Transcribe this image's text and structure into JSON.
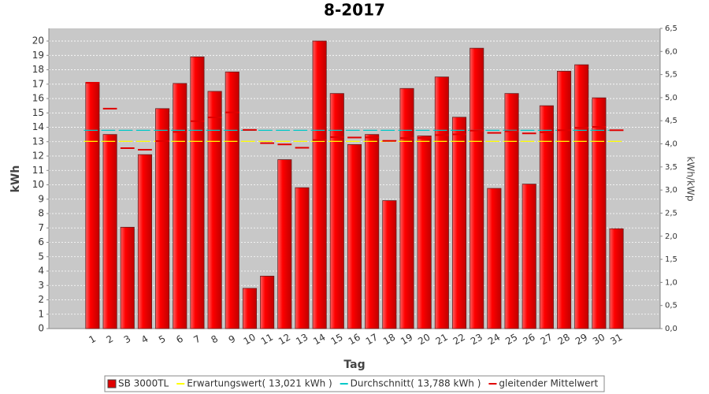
{
  "chart_data": {
    "type": "bar",
    "title": "8-2017",
    "x_label": "Tag",
    "y_label": "kWh",
    "y2_label": "kWh/kWp",
    "categories": [
      "1",
      "2",
      "3",
      "4",
      "5",
      "6",
      "7",
      "8",
      "9",
      "10",
      "11",
      "12",
      "13",
      "14",
      "15",
      "16",
      "17",
      "18",
      "19",
      "20",
      "21",
      "22",
      "23",
      "24",
      "25",
      "26",
      "27",
      "28",
      "29",
      "30",
      "31"
    ],
    "ylim": [
      0,
      20.88
    ],
    "yticks": [
      0,
      1,
      2,
      3,
      4,
      5,
      6,
      7,
      8,
      9,
      10,
      11,
      12,
      13,
      14,
      15,
      16,
      17,
      18,
      19,
      20
    ],
    "y2lim": [
      0,
      6.5
    ],
    "y2ticks": [
      {
        "value": 0,
        "label": "0,0"
      },
      {
        "value": 0.5,
        "label": "0,5"
      },
      {
        "value": 1,
        "label": "1,0"
      },
      {
        "value": 1.5,
        "label": "1,5"
      },
      {
        "value": 2,
        "label": "2,0"
      },
      {
        "value": 2.5,
        "label": "2,5"
      },
      {
        "value": 3,
        "label": "3,0"
      },
      {
        "value": 3.5,
        "label": "3,5"
      },
      {
        "value": 4,
        "label": "4,0"
      },
      {
        "value": 4.5,
        "label": "4,5"
      },
      {
        "value": 5,
        "label": "5,0"
      },
      {
        "value": 5.5,
        "label": "5,5"
      },
      {
        "value": 6,
        "label": "6,0"
      },
      {
        "value": 6.5,
        "label": "6,5"
      }
    ],
    "grid": true,
    "legend": "bottom",
    "series": [
      {
        "name": "SB 3000TL",
        "type": "bar",
        "color": "#e00000",
        "values": [
          17.1,
          13.5,
          7.05,
          12.1,
          15.3,
          17.05,
          18.9,
          16.5,
          17.85,
          2.8,
          3.65,
          11.75,
          9.8,
          20.0,
          16.35,
          12.8,
          13.5,
          8.9,
          16.7,
          13.4,
          17.5,
          14.7,
          19.5,
          9.75,
          16.35,
          10.05,
          15.5,
          17.9,
          18.35,
          16.05,
          6.95
        ]
      },
      {
        "name": "Erwartungswert( 13,021 kWh )",
        "type": "hline",
        "color": "#ffff00",
        "value": 13.021
      },
      {
        "name": "Durchschnitt( 13,788 kWh )",
        "type": "hline",
        "color": "#00c8c8",
        "value": 13.788
      },
      {
        "name": "gleitender Mittelwert",
        "type": "step",
        "color": "#e00000",
        "values": [
          17.1,
          15.3,
          12.55,
          12.44,
          13.04,
          13.68,
          14.43,
          14.69,
          15.04,
          13.82,
          12.9,
          12.81,
          12.58,
          13.11,
          13.32,
          13.29,
          13.3,
          13.06,
          13.25,
          13.26,
          13.46,
          13.51,
          13.77,
          13.61,
          13.72,
          13.58,
          13.65,
          13.8,
          13.96,
          14.03,
          13.8
        ]
      }
    ]
  }
}
